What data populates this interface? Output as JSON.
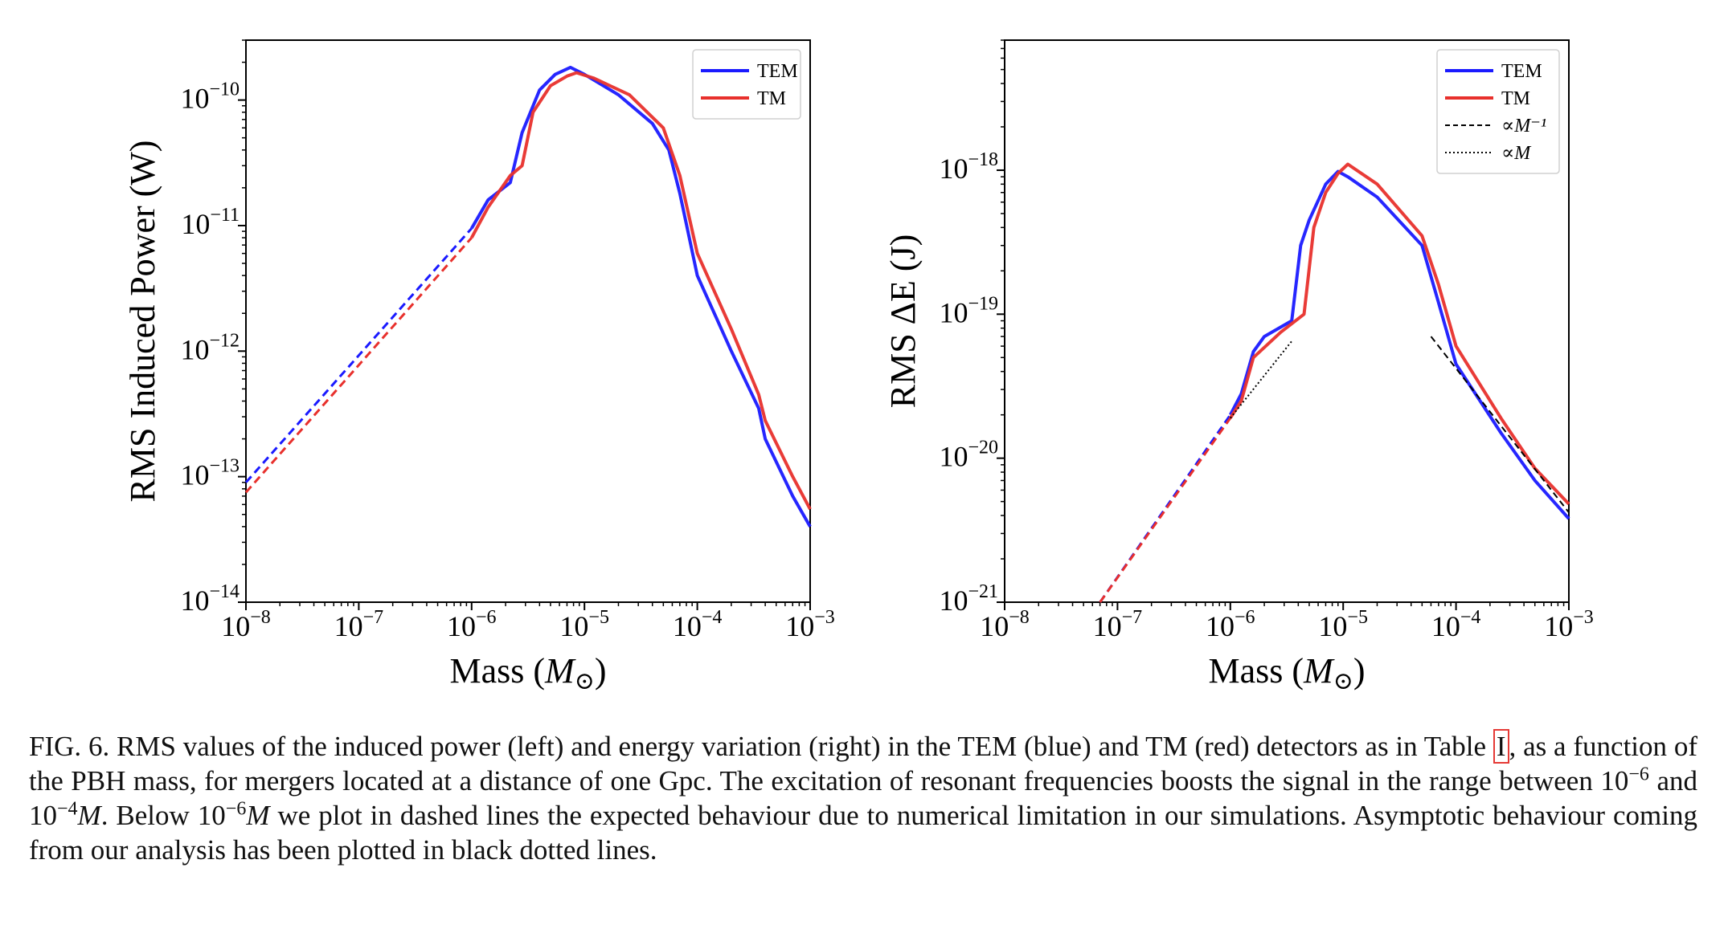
{
  "chart_data": [
    {
      "type": "line",
      "xlabel": "Mass (M_⊙)",
      "ylabel": "RMS Induced Power (W)",
      "xscale": "log",
      "yscale": "log",
      "xlim": [
        1e-08,
        0.001
      ],
      "ylim": [
        1e-14,
        3e-10
      ],
      "xticks": [
        -8,
        -7,
        -6,
        -5,
        -4,
        -3
      ],
      "yticks": [
        -14,
        -13,
        -12,
        -11,
        -10
      ],
      "xtick_labels": [
        "10−8",
        "10−7",
        "10−6",
        "10−5",
        "10−4",
        "10−3"
      ],
      "ytick_labels": [
        "10−14",
        "10−13",
        "10−12",
        "10−11",
        "10−10"
      ],
      "legend_position": "top-right",
      "series": [
        {
          "name": "TEM",
          "color": "#1a1aff",
          "points": [
            [
              1e-06,
              9.5e-12
            ],
            [
              1.4e-06,
              1.6e-11
            ],
            [
              2.2e-06,
              2.2e-11
            ],
            [
              2.8e-06,
              5.5e-11
            ],
            [
              4e-06,
              1.2e-10
            ],
            [
              5.5e-06,
              1.6e-10
            ],
            [
              7.5e-06,
              1.82e-10
            ],
            [
              1e-05,
              1.6e-10
            ],
            [
              2e-05,
              1.1e-10
            ],
            [
              4e-05,
              6.5e-11
            ],
            [
              5.6e-05,
              4e-11
            ],
            [
              7e-05,
              1.8e-11
            ],
            [
              0.0001,
              4e-12
            ],
            [
              0.0002,
              1e-12
            ],
            [
              0.00035,
              3.5e-13
            ],
            [
              0.0004,
              2e-13
            ],
            [
              0.0007,
              7e-14
            ],
            [
              0.001,
              4e-14
            ]
          ],
          "dashed_extrapolation": [
            [
              1e-08,
              9e-14
            ],
            [
              1e-06,
              9.5e-12
            ]
          ]
        },
        {
          "name": "TM",
          "color": "#e8302c",
          "points": [
            [
              1e-06,
              8e-12
            ],
            [
              1.4e-06,
              1.4e-11
            ],
            [
              2.2e-06,
              2.5e-11
            ],
            [
              2.8e-06,
              3e-11
            ],
            [
              3.5e-06,
              8e-11
            ],
            [
              5e-06,
              1.3e-10
            ],
            [
              7e-06,
              1.55e-10
            ],
            [
              8.5e-06,
              1.65e-10
            ],
            [
              1.2e-05,
              1.5e-10
            ],
            [
              2.5e-05,
              1.1e-10
            ],
            [
              5e-05,
              6e-11
            ],
            [
              7e-05,
              2.5e-11
            ],
            [
              0.0001,
              6e-12
            ],
            [
              0.0002,
              1.5e-12
            ],
            [
              0.00035,
              4.5e-13
            ],
            [
              0.0004,
              2.8e-13
            ],
            [
              0.0007,
              1e-13
            ],
            [
              0.001,
              5.5e-14
            ]
          ],
          "dashed_extrapolation": [
            [
              1e-08,
              7.5e-14
            ],
            [
              1e-06,
              8e-12
            ]
          ]
        }
      ]
    },
    {
      "type": "line",
      "xlabel": "Mass (M_⊙)",
      "ylabel": "RMS ΔE (J)",
      "xscale": "log",
      "yscale": "log",
      "xlim": [
        1e-08,
        0.001
      ],
      "ylim": [
        1e-21,
        8e-18
      ],
      "xticks": [
        -8,
        -7,
        -6,
        -5,
        -4,
        -3
      ],
      "yticks": [
        -21,
        -20,
        -19,
        -18
      ],
      "xtick_labels": [
        "10−8",
        "10−7",
        "10−6",
        "10−5",
        "10−4",
        "10−3"
      ],
      "ytick_labels": [
        "10−21",
        "10−20",
        "10−19",
        "10−18"
      ],
      "legend_position": "top-right",
      "series": [
        {
          "name": "TEM",
          "color": "#1a1aff",
          "points": [
            [
              1e-06,
              2e-20
            ],
            [
              1.25e-06,
              2.8e-20
            ],
            [
              1.6e-06,
              5.5e-20
            ],
            [
              2e-06,
              7e-20
            ],
            [
              3.5e-06,
              9e-20
            ],
            [
              4.2e-06,
              3e-19
            ],
            [
              5e-06,
              4.5e-19
            ],
            [
              7e-06,
              8e-19
            ],
            [
              9e-06,
              9.8e-19
            ],
            [
              1.1e-05,
              9e-19
            ],
            [
              2e-05,
              6.5e-19
            ],
            [
              5e-05,
              3e-19
            ],
            [
              7e-05,
              1.2e-19
            ],
            [
              0.0001,
              4.5e-20
            ],
            [
              0.00025,
              1.5e-20
            ],
            [
              0.0005,
              7e-21
            ],
            [
              0.001,
              3.8e-21
            ]
          ],
          "dashed_extrapolation": [
            [
              7e-08,
              1e-21
            ],
            [
              1e-06,
              2e-20
            ]
          ]
        },
        {
          "name": "TM",
          "color": "#e8302c",
          "points": [
            [
              1e-06,
              1.9e-20
            ],
            [
              1.25e-06,
              2.5e-20
            ],
            [
              1.6e-06,
              5e-20
            ],
            [
              2.8e-06,
              7.5e-20
            ],
            [
              4.5e-06,
              1e-19
            ],
            [
              5.5e-06,
              4e-19
            ],
            [
              7e-06,
              7e-19
            ],
            [
              9e-06,
              9.5e-19
            ],
            [
              1.1e-05,
              1.1e-18
            ],
            [
              2e-05,
              8e-19
            ],
            [
              5e-05,
              3.5e-19
            ],
            [
              7e-05,
              1.6e-19
            ],
            [
              0.0001,
              6e-20
            ],
            [
              0.00025,
              1.9e-20
            ],
            [
              0.0005,
              8.5e-21
            ],
            [
              0.001,
              4.8e-21
            ]
          ],
          "dashed_extrapolation": [
            [
              7e-08,
              1e-21
            ],
            [
              1e-06,
              1.9e-20
            ]
          ]
        },
        {
          "name": "∝M⁻¹",
          "color": "#000000",
          "style": "dashed",
          "points": [
            [
              6e-05,
              7e-20
            ],
            [
              0.001,
              4.2e-21
            ]
          ]
        },
        {
          "name": "∝M",
          "color": "#000000",
          "style": "dotted",
          "points": [
            [
              1e-06,
              1.9e-20
            ],
            [
              3.5e-06,
              6.5e-20
            ]
          ]
        }
      ]
    }
  ],
  "caption": {
    "part1": "FIG. 6. RMS values of the induced power (left) and energy variation (right) in the TEM (blue) and TM (red) detectors as in Table ",
    "ref": "I",
    "part2": ", as a function of the PBH mass, for mergers located at a distance of one Gpc. The excitation of resonant frequencies boosts the signal in the range between 10",
    "exp1": "−6",
    "part3": " and 10",
    "exp2": "−4",
    "msun1": "M",
    "part4": ". Below 10",
    "exp3": "−6",
    "msun2": "M",
    "part5": " we plot in dashed lines the expected behaviour due to numerical limitation in our simulations. Asymptotic behaviour coming from our analysis has been plotted in black dotted lines."
  }
}
